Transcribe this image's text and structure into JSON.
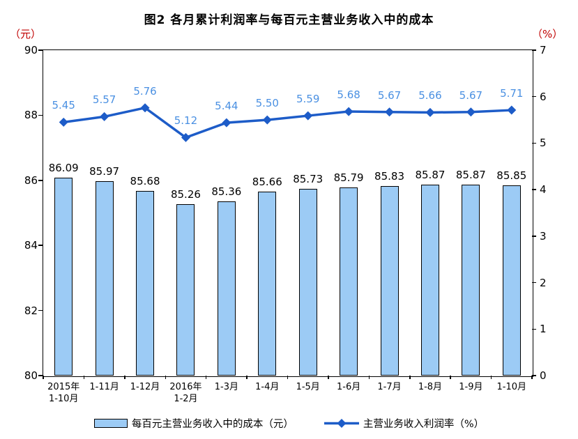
{
  "title": "图2 各月累计利润率与每百元主营业务收入中的成本",
  "left_axis": {
    "unit": "（元）",
    "ticks": [
      "90",
      "88",
      "86",
      "84",
      "82",
      "80"
    ]
  },
  "right_axis": {
    "unit": "（%）",
    "ticks": [
      "7",
      "6",
      "5",
      "4",
      "3",
      "2",
      "1",
      "0"
    ]
  },
  "legend": [
    {
      "label": "每百元主营业务收入中的成本（元）",
      "marker": "bar-swatch"
    },
    {
      "label": "主营业务收入利润率（%）",
      "marker": "line-diamond"
    }
  ],
  "colors": {
    "bar_fill": "#9CCBF5",
    "bar_border": "#000000",
    "line": "#1D5CC8",
    "line_label": "#4A90E2",
    "axis_unit_red": "#C00000",
    "text": "#000000"
  },
  "chart_data": {
    "type": "bar",
    "subtype": "bar+line dual axis",
    "title": "图2 各月累计利润率与每百元主营业务收入中的成本",
    "categories": [
      "2015年\n1-10月",
      "1-11月",
      "1-12月",
      "2016年\n1-2月",
      "1-3月",
      "1-4月",
      "1-5月",
      "1-6月",
      "1-7月",
      "1-8月",
      "1-9月",
      "1-10月"
    ],
    "series": [
      {
        "name": "每百元主营业务收入中的成本（元）",
        "type": "bar",
        "axis": "left",
        "values": [
          86.09,
          85.97,
          85.68,
          85.26,
          85.36,
          85.66,
          85.73,
          85.79,
          85.83,
          85.87,
          85.87,
          85.85
        ]
      },
      {
        "name": "主营业务收入利润率（%）",
        "type": "line",
        "axis": "right",
        "values": [
          5.45,
          5.57,
          5.76,
          5.12,
          5.44,
          5.5,
          5.59,
          5.68,
          5.67,
          5.66,
          5.67,
          5.71
        ]
      }
    ],
    "left_ylim": [
      80,
      90
    ],
    "right_ylim": [
      0,
      7
    ],
    "grid": false,
    "legend_position": "bottom",
    "xlabel": "",
    "ylabel_left": "（元）",
    "ylabel_right": "（%）"
  }
}
